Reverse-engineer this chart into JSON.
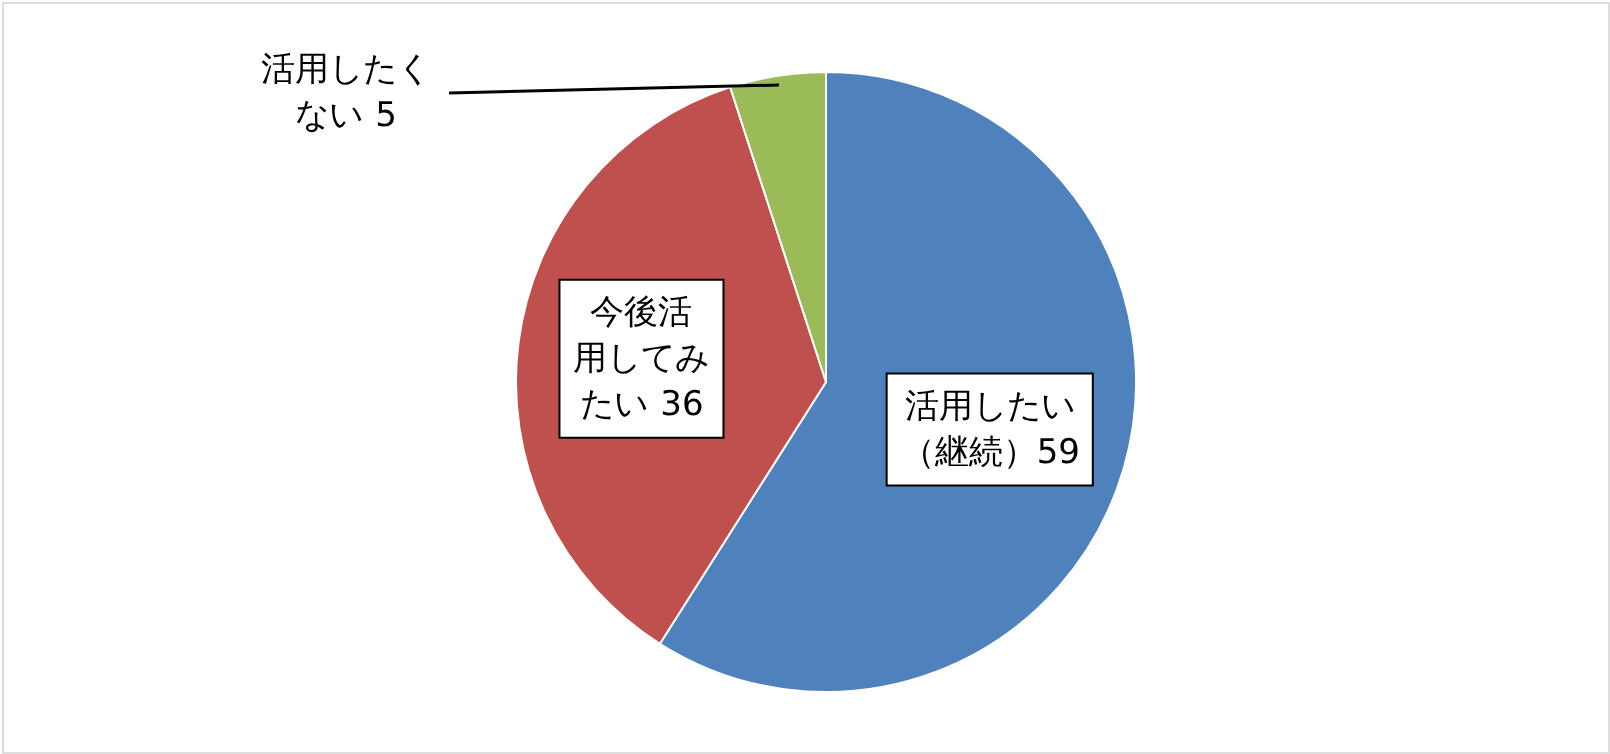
{
  "chart_data": {
    "type": "pie",
    "categories": [
      "活用したい（継続）",
      "今後活用してみたい",
      "活用したくない"
    ],
    "values": [
      59,
      36,
      5
    ],
    "colors": [
      "#4f81bd",
      "#c0504d",
      "#9bbb59"
    ],
    "data_labels": true
  }
}
